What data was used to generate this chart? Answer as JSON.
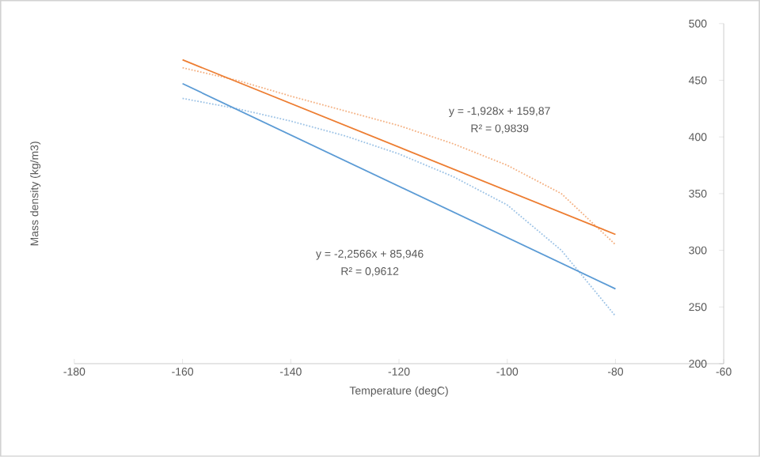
{
  "chart_data": {
    "type": "line",
    "xlabel": "Temperature (degC)",
    "ylabel": "Mass density (kg/m3)",
    "xlim": [
      -180,
      -60
    ],
    "xticks": [
      -180,
      -160,
      -140,
      -120,
      -100,
      -80,
      -60
    ],
    "ylim": [
      200,
      500
    ],
    "yticks": [
      200,
      250,
      300,
      350,
      400,
      450,
      500
    ],
    "grid": false,
    "marker": "none",
    "series": [
      {
        "color": "#9dc3e6",
        "line_style": "dotted",
        "x": [
          -160,
          -150,
          -140,
          -130,
          -120,
          -110,
          -100,
          -90,
          -80
        ],
        "values": [
          434,
          425,
          414,
          401,
          385,
          365,
          340,
          300,
          242
        ]
      },
      {
        "color": "#f4b183",
        "line_style": "dotted",
        "x": [
          -160,
          -150,
          -140,
          -130,
          -120,
          -110,
          -100,
          -90,
          -80
        ],
        "values": [
          461,
          450,
          436,
          423,
          410,
          394,
          375,
          350,
          305
        ]
      },
      {
        "color": "#5b9bd5",
        "line_style": "solid",
        "x": [
          -160,
          -80
        ],
        "values": [
          447,
          266
        ]
      },
      {
        "color": "#ed7d31",
        "line_style": "solid",
        "x": [
          -160,
          -80
        ],
        "values": [
          468,
          314
        ]
      }
    ],
    "annotations": [
      "y = -1,928x + 159,87",
      "R² = 0,9839",
      "y = -2,2566x + 85,946",
      "R² = 0,9612"
    ]
  }
}
